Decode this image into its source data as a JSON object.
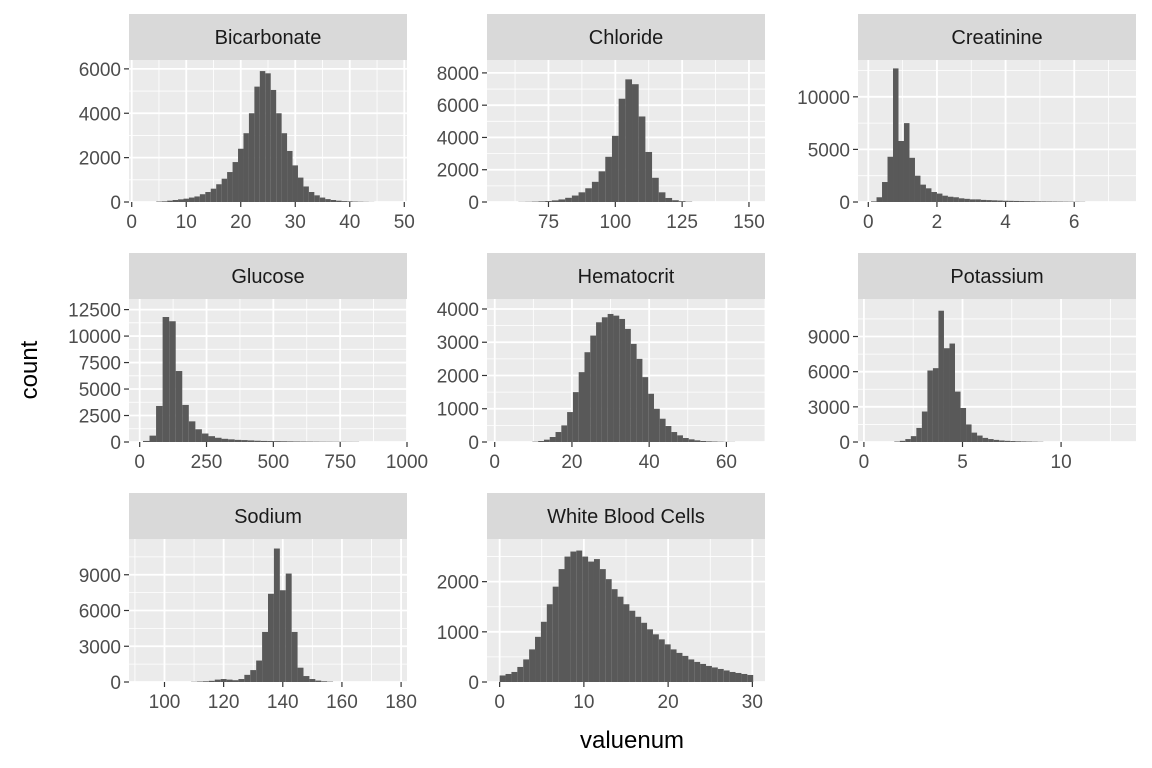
{
  "chart_data": {
    "type": "histogram-facets",
    "xlabel": "valuenum",
    "ylabel": "count",
    "style": {
      "panel_background": "#ebebeb",
      "grid_color": "#ffffff",
      "strip_background": "#d9d9d9",
      "bar_color": "#595959",
      "tick_color": "#333333"
    },
    "facets": [
      {
        "name": "Bicarbonate",
        "xlim": [
          -0.5,
          50.5
        ],
        "ylim": [
          0,
          6400
        ],
        "xticks": [
          0,
          10,
          20,
          30,
          40,
          50
        ],
        "yticks": [
          0,
          2000,
          4000,
          6000
        ],
        "bin_width": 1,
        "bins_x": [
          5,
          6,
          7,
          8,
          9,
          10,
          11,
          12,
          13,
          14,
          15,
          16,
          17,
          18,
          19,
          20,
          21,
          22,
          23,
          24,
          25,
          26,
          27,
          28,
          29,
          30,
          31,
          32,
          33,
          34,
          35,
          36,
          37,
          38,
          39,
          40,
          41,
          42,
          43,
          44
        ],
        "bins_y": [
          20,
          30,
          60,
          90,
          120,
          150,
          200,
          250,
          350,
          450,
          600,
          800,
          1050,
          1350,
          1800,
          2400,
          3100,
          4000,
          5200,
          5900,
          5800,
          5050,
          4000,
          3100,
          2300,
          1650,
          1100,
          700,
          450,
          300,
          200,
          130,
          90,
          60,
          40,
          30,
          20,
          15,
          10,
          5
        ]
      },
      {
        "name": "Chloride",
        "xlim": [
          52,
          156
        ],
        "ylim": [
          0,
          8800
        ],
        "xticks": [
          75,
          100,
          125,
          150
        ],
        "yticks": [
          0,
          2000,
          4000,
          6000,
          8000
        ],
        "bin_width": 2.5,
        "bins_x": [
          65,
          67.5,
          70,
          72.5,
          75,
          77.5,
          80,
          82.5,
          85,
          87.5,
          90,
          92.5,
          95,
          97.5,
          100,
          102.5,
          105,
          107.5,
          110,
          112.5,
          115,
          117.5,
          120,
          122.5,
          125,
          127.5
        ],
        "bins_y": [
          10,
          15,
          25,
          40,
          60,
          100,
          160,
          260,
          400,
          600,
          850,
          1250,
          1900,
          2800,
          4100,
          6400,
          7600,
          7300,
          5300,
          3100,
          1500,
          600,
          250,
          110,
          50,
          20
        ]
      },
      {
        "name": "Creatinine",
        "xlim": [
          -0.3,
          7.8
        ],
        "ylim": [
          0,
          13500
        ],
        "xticks": [
          0,
          2,
          4,
          6
        ],
        "yticks": [
          0,
          5000,
          10000
        ],
        "bin_width": 0.16,
        "bins_x": [
          0.16,
          0.32,
          0.48,
          0.64,
          0.8,
          0.96,
          1.12,
          1.28,
          1.44,
          1.6,
          1.76,
          1.92,
          2.08,
          2.24,
          2.4,
          2.56,
          2.72,
          2.88,
          3.04,
          3.2,
          3.36,
          3.52,
          3.68,
          3.84,
          4.0,
          4.16,
          4.32,
          4.48,
          4.64,
          4.8,
          4.96,
          5.12,
          5.28,
          5.44,
          5.6,
          5.76,
          5.92,
          6.08,
          6.24
        ],
        "bins_y": [
          60,
          450,
          1900,
          4300,
          12700,
          5800,
          7500,
          4200,
          2500,
          1650,
          1300,
          950,
          800,
          600,
          500,
          450,
          350,
          300,
          250,
          250,
          200,
          180,
          160,
          140,
          120,
          110,
          100,
          90,
          80,
          70,
          60,
          55,
          50,
          45,
          40,
          35,
          30,
          25,
          20
        ]
      },
      {
        "name": "Glucose",
        "xlim": [
          -40,
          1000
        ],
        "ylim": [
          0,
          13500
        ],
        "xticks": [
          0,
          250,
          500,
          750,
          1000
        ],
        "yticks": [
          0,
          2500,
          5000,
          7500,
          10000,
          12500
        ],
        "bin_width": 24.5,
        "bins_x": [
          24.5,
          49,
          73.5,
          98,
          122.5,
          147,
          171.5,
          196,
          220.5,
          245,
          269.5,
          294,
          318.5,
          343,
          367.5,
          392,
          416.5,
          441,
          465.5,
          490,
          514.5,
          539,
          563.5,
          588,
          612.5,
          637,
          661.5,
          686,
          710.5,
          735,
          759.5,
          784,
          808.5
        ],
        "bins_y": [
          100,
          600,
          3400,
          11800,
          11400,
          6700,
          3500,
          1950,
          1200,
          800,
          550,
          400,
          300,
          250,
          200,
          180,
          150,
          120,
          100,
          90,
          80,
          70,
          60,
          50,
          45,
          40,
          35,
          30,
          28,
          25,
          22,
          20,
          18
        ]
      },
      {
        "name": "Hematocrit",
        "xlim": [
          -2,
          70
        ],
        "ylim": [
          0,
          4300
        ],
        "xticks": [
          0,
          20,
          40,
          60
        ],
        "yticks": [
          0,
          1000,
          2000,
          3000,
          4000
        ],
        "bin_width": 1.5,
        "bins_x": [
          10.5,
          12,
          13.5,
          15,
          16.5,
          18,
          19.5,
          21,
          22.5,
          24,
          25.5,
          27,
          28.5,
          30,
          31.5,
          33,
          34.5,
          36,
          37.5,
          39,
          40.5,
          42,
          43.5,
          45,
          46.5,
          48,
          49.5,
          51,
          52.5,
          54,
          55.5,
          57,
          58.5,
          60,
          61.5
        ],
        "bins_y": [
          10,
          30,
          70,
          150,
          300,
          500,
          900,
          1500,
          2100,
          2700,
          3200,
          3600,
          3750,
          3850,
          3800,
          3700,
          3400,
          2950,
          2500,
          1950,
          1450,
          1000,
          700,
          480,
          300,
          200,
          120,
          80,
          50,
          30,
          20,
          15,
          10,
          6,
          4
        ]
      },
      {
        "name": "Potassium",
        "xlim": [
          -0.3,
          13.8
        ],
        "ylim": [
          0,
          12200
        ],
        "xticks": [
          0,
          5,
          10
        ],
        "yticks": [
          0,
          3000,
          6000,
          9000
        ],
        "bin_width": 0.28,
        "bins_x": [
          1.68,
          1.96,
          2.24,
          2.52,
          2.8,
          3.08,
          3.36,
          3.64,
          3.92,
          4.2,
          4.48,
          4.76,
          5.04,
          5.32,
          5.6,
          5.88,
          6.16,
          6.44,
          6.72,
          7.0,
          7.28,
          7.56,
          7.84,
          8.12,
          8.4,
          8.68,
          8.96
        ],
        "bins_y": [
          40,
          100,
          250,
          500,
          1200,
          2600,
          6100,
          6300,
          11200,
          8000,
          8400,
          4300,
          2900,
          1500,
          800,
          550,
          350,
          250,
          180,
          130,
          100,
          80,
          60,
          50,
          40,
          30,
          20
        ]
      },
      {
        "name": "Sodium",
        "xlim": [
          88,
          182
        ],
        "ylim": [
          0,
          12000
        ],
        "xticks": [
          100,
          120,
          140,
          160,
          180
        ],
        "yticks": [
          0,
          3000,
          6000,
          9000
        ],
        "bin_width": 2,
        "bins_x": [
          110,
          112,
          114,
          116,
          118,
          120,
          122,
          124,
          126,
          128,
          130,
          132,
          134,
          136,
          138,
          140,
          142,
          144,
          146,
          148,
          150,
          152,
          154,
          156
        ],
        "bins_y": [
          20,
          40,
          60,
          100,
          200,
          250,
          200,
          150,
          250,
          600,
          1000,
          1800,
          4200,
          7400,
          11200,
          7700,
          9100,
          4200,
          1200,
          500,
          250,
          120,
          60,
          30
        ]
      },
      {
        "name": "White Blood Cells",
        "xlim": [
          -1.5,
          31.5
        ],
        "ylim": [
          0,
          2850
        ],
        "xticks": [
          0,
          10,
          20,
          30
        ],
        "yticks": [
          0,
          1000,
          2000
        ],
        "bin_width": 0.7,
        "bins_x": [
          0.35,
          1.05,
          1.75,
          2.45,
          3.15,
          3.85,
          4.55,
          5.25,
          5.95,
          6.65,
          7.35,
          8.05,
          8.75,
          9.45,
          10.15,
          10.85,
          11.55,
          12.25,
          12.95,
          13.65,
          14.35,
          15.05,
          15.75,
          16.45,
          17.15,
          17.85,
          18.55,
          19.25,
          19.95,
          20.65,
          21.35,
          22.05,
          22.75,
          23.45,
          24.15,
          24.85,
          25.55,
          26.25,
          26.95,
          27.65,
          28.35,
          29.05,
          29.75
        ],
        "bins_y": [
          130,
          160,
          200,
          300,
          450,
          650,
          900,
          1200,
          1550,
          1900,
          2250,
          2500,
          2600,
          2620,
          2500,
          2400,
          2450,
          2250,
          2050,
          1850,
          1700,
          1550,
          1420,
          1300,
          1180,
          1050,
          950,
          850,
          750,
          650,
          580,
          520,
          450,
          400,
          360,
          320,
          290,
          260,
          230,
          200,
          180,
          160,
          140
        ]
      }
    ]
  }
}
